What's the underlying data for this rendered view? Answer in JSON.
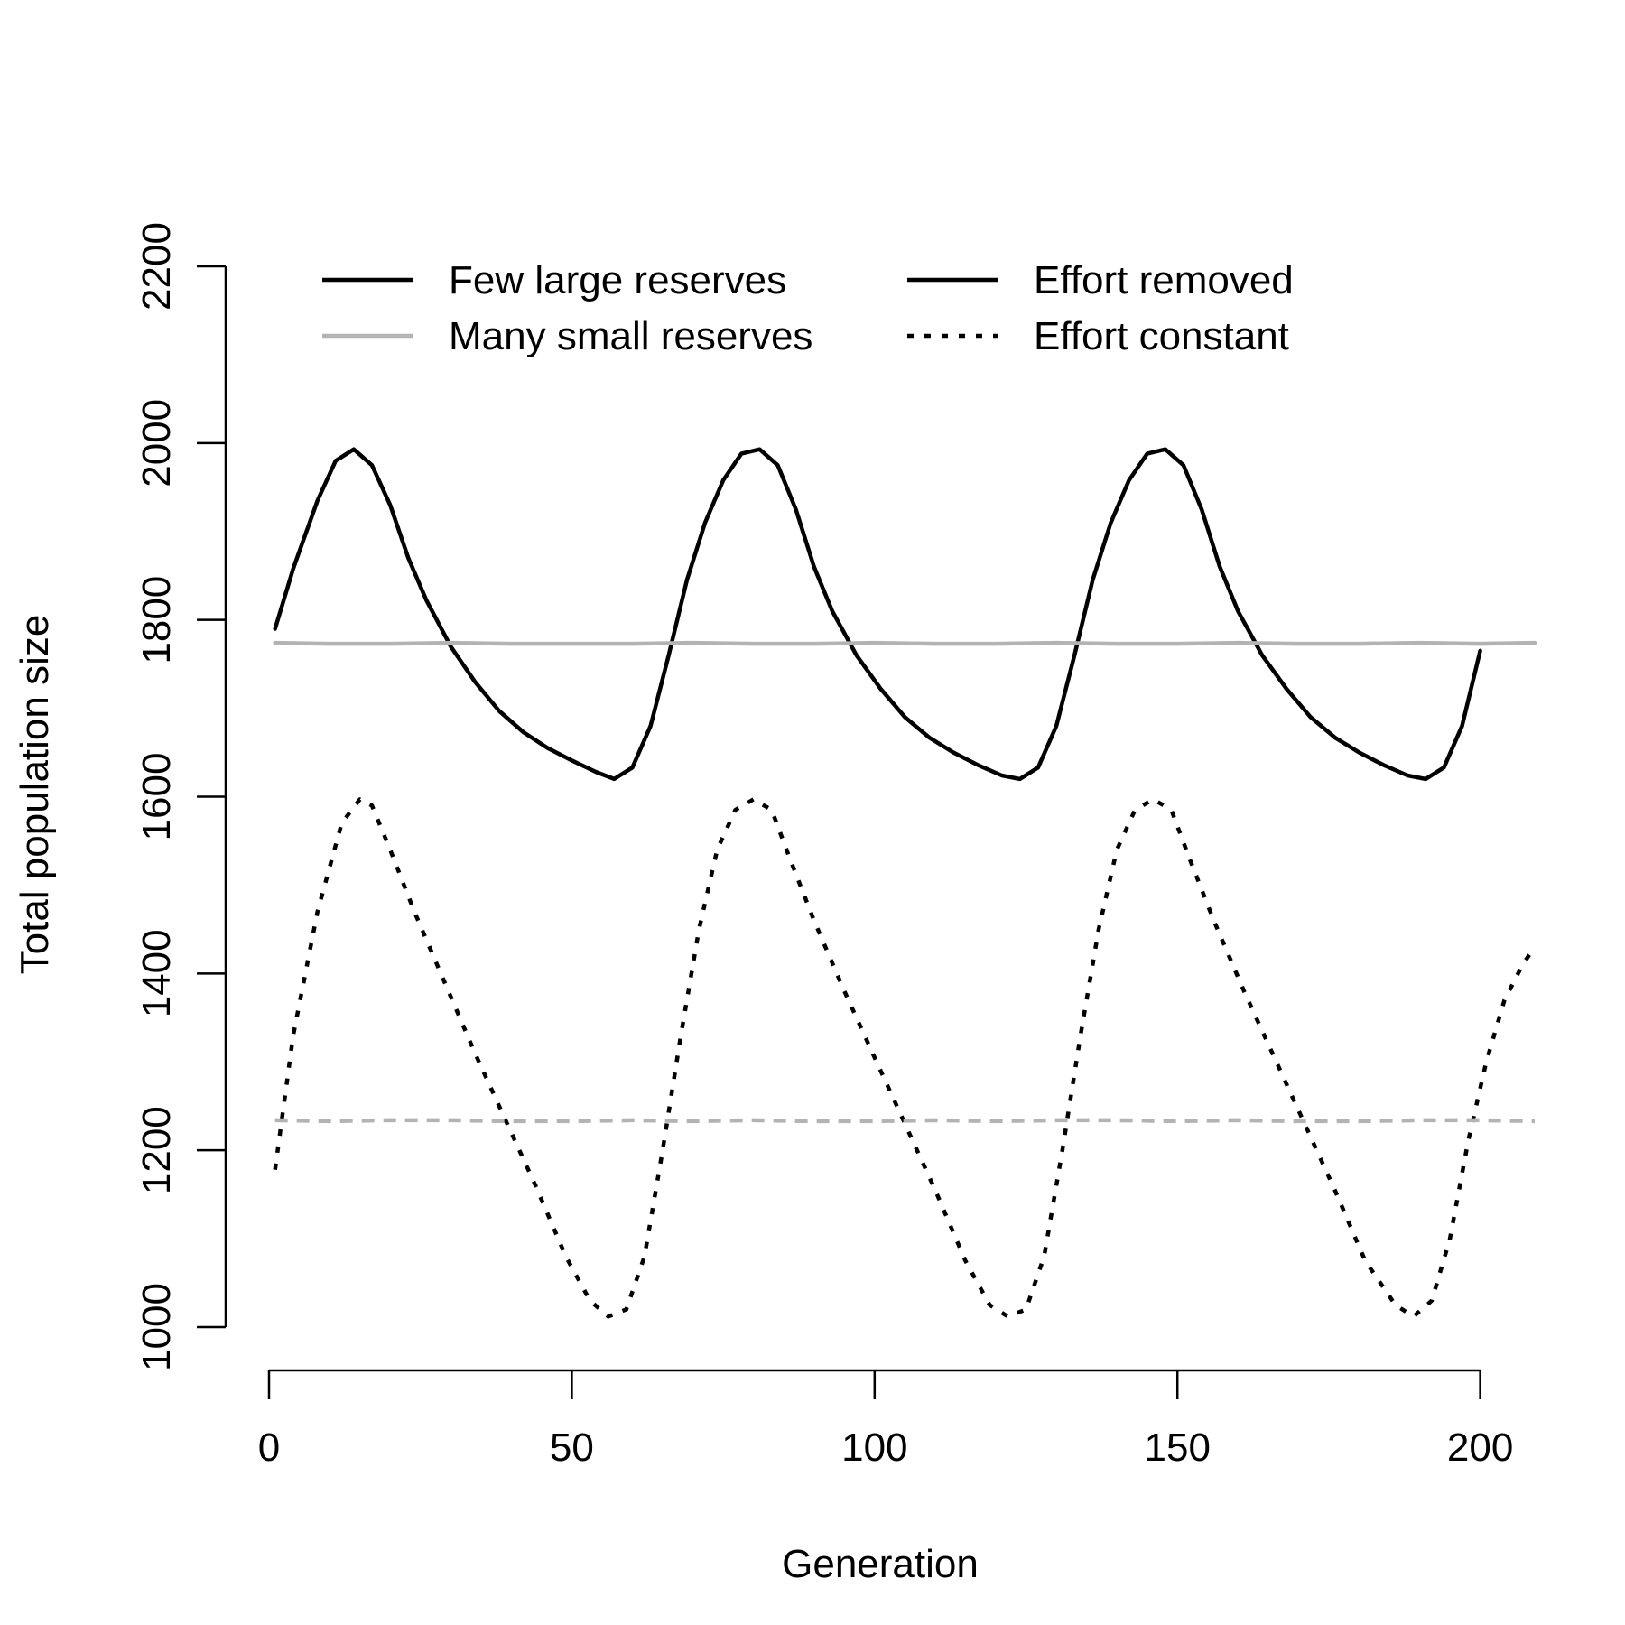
{
  "chart_data": {
    "type": "line",
    "xlabel": "Generation",
    "ylabel": "Total population size",
    "xlim": [
      0,
      209
    ],
    "ylim": [
      1000,
      2200
    ],
    "x_ticks": [
      0,
      50,
      100,
      150,
      200
    ],
    "y_ticks": [
      1000,
      1200,
      1400,
      1600,
      1800,
      2000,
      2200
    ],
    "grid": false,
    "legend": {
      "placement": "top",
      "entries": [
        {
          "label": "Few large reserves",
          "color": "#000000",
          "style": "solid"
        },
        {
          "label": "Many small reserves",
          "color": "#b3b3b3",
          "style": "solid"
        },
        {
          "label": "Effort removed",
          "color": "#000000",
          "style": "solid"
        },
        {
          "label": "Effort constant",
          "color": "#000000",
          "style": "dotted"
        }
      ]
    },
    "series": [
      {
        "name": "Few large reserves — Effort removed",
        "color": "#000000",
        "style": "solid",
        "x": [
          1,
          4,
          8,
          11,
          14,
          17,
          20,
          23,
          26,
          30,
          34,
          38,
          42,
          46,
          50,
          54,
          57,
          60,
          63,
          66,
          69,
          72,
          75,
          78,
          81,
          84,
          87,
          90,
          93,
          97,
          101,
          105,
          109,
          113,
          117,
          121,
          124,
          127,
          130,
          133,
          136,
          139,
          142,
          145,
          148,
          151,
          154,
          157,
          160,
          164,
          168,
          172,
          176,
          180,
          184,
          188,
          191,
          194,
          197,
          200
        ],
        "y": [
          1790,
          1858,
          1935,
          1980,
          1993,
          1975,
          1930,
          1870,
          1822,
          1770,
          1730,
          1697,
          1673,
          1655,
          1641,
          1628,
          1620,
          1633,
          1680,
          1760,
          1845,
          1910,
          1958,
          1988,
          1993,
          1975,
          1925,
          1860,
          1810,
          1760,
          1722,
          1690,
          1667,
          1650,
          1636,
          1624,
          1620,
          1633,
          1680,
          1760,
          1845,
          1910,
          1958,
          1988,
          1993,
          1975,
          1925,
          1860,
          1810,
          1760,
          1722,
          1690,
          1667,
          1650,
          1636,
          1624,
          1620,
          1633,
          1680,
          1765
        ]
      },
      {
        "name": "Many small reserves — Effort removed",
        "color": "#b3b3b3",
        "style": "solid",
        "x": [
          1,
          10,
          20,
          30,
          40,
          50,
          60,
          70,
          80,
          90,
          100,
          110,
          120,
          130,
          140,
          150,
          160,
          170,
          180,
          190,
          200,
          209
        ],
        "y": [
          1774,
          1773,
          1773,
          1774,
          1773,
          1773,
          1773,
          1774,
          1773,
          1773,
          1774,
          1773,
          1773,
          1774,
          1773,
          1773,
          1774,
          1773,
          1773,
          1774,
          1773,
          1774
        ]
      },
      {
        "name": "Few large reserves — Effort constant",
        "color": "#000000",
        "style": "dotted",
        "x": [
          1,
          4,
          8,
          12,
          15,
          17,
          20,
          24,
          29,
          34,
          39,
          44,
          49,
          53,
          56,
          59,
          62,
          65,
          68,
          71,
          74,
          77,
          80,
          83,
          86,
          90,
          95,
          100,
          105,
          110,
          115,
          119,
          122,
          125,
          128,
          131,
          134,
          137,
          140,
          143,
          146,
          149,
          152,
          156,
          161,
          166,
          171,
          176,
          181,
          186,
          189,
          192,
          195,
          198,
          201,
          204,
          207,
          209
        ],
        "y": [
          1178,
          1330,
          1470,
          1570,
          1597,
          1590,
          1540,
          1470,
          1390,
          1310,
          1235,
          1160,
          1080,
          1030,
          1012,
          1020,
          1080,
          1200,
          1330,
          1450,
          1540,
          1585,
          1597,
          1585,
          1530,
          1460,
          1380,
          1305,
          1230,
          1155,
          1075,
          1025,
          1012,
          1020,
          1080,
          1200,
          1330,
          1450,
          1540,
          1585,
          1597,
          1585,
          1530,
          1460,
          1380,
          1305,
          1230,
          1155,
          1075,
          1025,
          1012,
          1030,
          1100,
          1210,
          1300,
          1370,
          1410,
          1430
        ]
      },
      {
        "name": "Many small reserves — Effort constant",
        "color": "#b3b3b3",
        "style": "dashed",
        "x": [
          1,
          10,
          20,
          30,
          40,
          50,
          60,
          70,
          80,
          90,
          100,
          110,
          120,
          130,
          140,
          150,
          160,
          170,
          180,
          190,
          200,
          209
        ],
        "y": [
          1234,
          1233,
          1234,
          1234,
          1233,
          1233,
          1234,
          1233,
          1234,
          1233,
          1233,
          1234,
          1233,
          1234,
          1234,
          1233,
          1234,
          1233,
          1233,
          1234,
          1234,
          1233
        ]
      }
    ]
  }
}
